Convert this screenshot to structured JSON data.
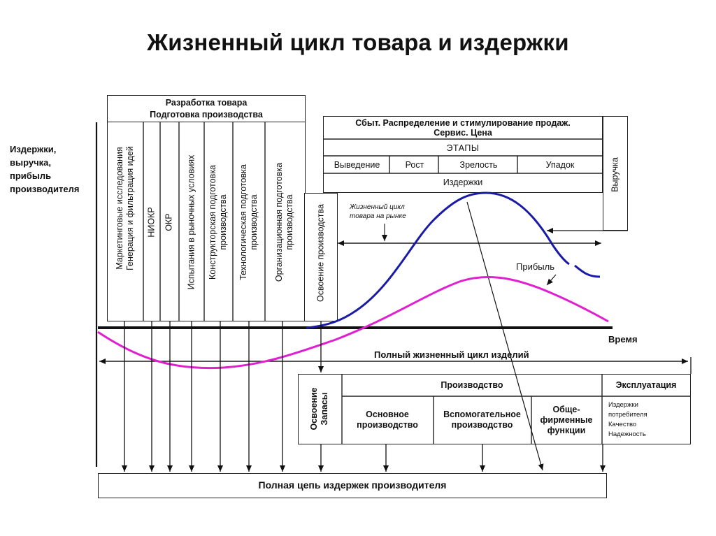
{
  "title": "Жизненный цикл товара и издержки",
  "y_label": [
    "Издержки,",
    "выручка,",
    "прибыль",
    "производителя"
  ],
  "development_header": [
    "Разработка товара",
    "Подготовка производства"
  ],
  "development_columns": [
    [
      "Маркетинговые исследования",
      "Генерация и фильтрация идей"
    ],
    [
      "НИОКР"
    ],
    [
      "ОКР"
    ],
    [
      "Испытания в рыночных условиях"
    ],
    [
      "Конструкторская подготовка",
      "производства"
    ],
    [
      "Технологическая подготовка",
      "производства"
    ],
    [
      "Организационная подготовка",
      "производства"
    ]
  ],
  "mastering_column": "Освоение производства",
  "sales_header": [
    "Сбыт. Распределение и стимулирование продаж.",
    "Сервис. Цена"
  ],
  "stages_title": "ЭТАПЫ",
  "stages": [
    "Выведение",
    "Рост",
    "Зрелость",
    "Упадок"
  ],
  "costs_label": "Издержки",
  "revenue_label": "Выручка",
  "market_cycle_label": [
    "Жизненный цикл",
    "товара на рынке"
  ],
  "profit_label": "Прибыль",
  "time_label": "Время",
  "full_cycle_label": "Полный жизненный цикл изделий",
  "bottom_table": {
    "mastering": [
      "Освоение",
      "Запасы"
    ],
    "production": "Производство",
    "operation": "Эксплуатация",
    "main_production": [
      "Основное",
      "производство"
    ],
    "aux_production": [
      "Вспомогательное",
      "производство"
    ],
    "corporate_functions": [
      "Обще-",
      "фирменные",
      "функции"
    ],
    "consumer_items": [
      "Издержки",
      "потребителя",
      "Качество",
      "Надежность"
    ]
  },
  "full_chain_label": "Полная цепь издержек производителя",
  "colors": {
    "revenue_curve": "#1a1aa8",
    "profit_curve": "#e020d0",
    "lines": "#111111"
  }
}
